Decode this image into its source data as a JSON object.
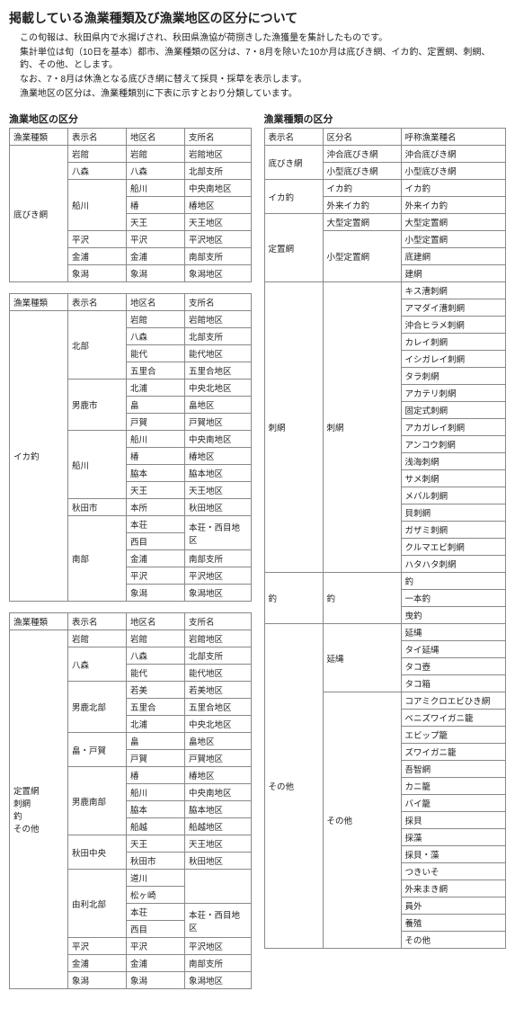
{
  "title": "掲載している漁業種類及び漁業地区の区分について",
  "intro": [
    "この旬報は、秋田県内で水揚げされ、秋田県漁協が荷捌きした漁獲量を集計したものです。",
    "集計単位は旬（10日を基本）都市、漁業種類の区分は、7・8月を除いた10か月は底びき網、イカ釣、定置網、刺網、釣、その他、とします。",
    "なお、7・8月は休漁となる底びき網に替えて採貝・採草を表示します。",
    "漁業地区の区分は、漁業種類別に下表に示すとおり分類しています。"
  ],
  "left_title": "漁業地区の区分",
  "right_title": "漁業種類の区分",
  "left_headers": [
    "漁業種類",
    "表示名",
    "地区名",
    "支所名"
  ],
  "right_headers": [
    "表示名",
    "区分名",
    "呼称漁業種名"
  ],
  "left_tables": [
    {
      "cat": "底びき網",
      "blocks": [
        {
          "disp": "岩館",
          "rows": [
            [
              "岩館",
              "岩館地区"
            ]
          ]
        },
        {
          "disp": "八森",
          "rows": [
            [
              "八森",
              "北部支所"
            ]
          ]
        },
        {
          "disp": "船川",
          "rows": [
            [
              "船川",
              "中央南地区"
            ],
            [
              "椿",
              "椿地区"
            ],
            [
              "天王",
              "天王地区"
            ]
          ]
        },
        {
          "disp": "平沢",
          "rows": [
            [
              "平沢",
              "平沢地区"
            ]
          ]
        },
        {
          "disp": "金浦",
          "rows": [
            [
              "金浦",
              "南部支所"
            ]
          ]
        },
        {
          "disp": "象潟",
          "rows": [
            [
              "象潟",
              "象潟地区"
            ]
          ]
        }
      ]
    },
    {
      "cat": "イカ釣",
      "blocks": [
        {
          "disp": "北部",
          "rows": [
            [
              "岩館",
              "岩館地区"
            ],
            [
              "八森",
              "北部支所"
            ],
            [
              "能代",
              "能代地区"
            ],
            [
              "五里合",
              "五里合地区"
            ]
          ]
        },
        {
          "disp": "男鹿市",
          "rows": [
            [
              "北浦",
              "中央北地区"
            ],
            [
              "畠",
              "畠地区"
            ],
            [
              "戸賀",
              "戸賀地区"
            ]
          ]
        },
        {
          "disp": "船川",
          "rows": [
            [
              "船川",
              "中央南地区"
            ],
            [
              "椿",
              "椿地区"
            ],
            [
              "脇本",
              "脇本地区"
            ],
            [
              "天王",
              "天王地区"
            ]
          ]
        },
        {
          "disp": "秋田市",
          "rows": [
            [
              "本所",
              "秋田地区"
            ]
          ]
        },
        {
          "disp": "南部",
          "rows": [
            [
              "本荘",
              ""
            ],
            [
              "西目",
              "本荘・西目地区"
            ],
            [
              "金浦",
              "南部支所"
            ],
            [
              "平沢",
              "平沢地区"
            ],
            [
              "象潟",
              "象潟地区"
            ]
          ]
        }
      ],
      "merge_nanbu": true
    },
    {
      "cat": "定置網\n刺網\n釣\nその他",
      "blocks": [
        {
          "disp": "岩館",
          "rows": [
            [
              "岩館",
              "岩館地区"
            ]
          ]
        },
        {
          "disp": "八森",
          "rows": [
            [
              "八森",
              "北部支所"
            ],
            [
              "能代",
              "能代地区"
            ]
          ]
        },
        {
          "disp": "男鹿北部",
          "rows": [
            [
              "若美",
              "若美地区"
            ],
            [
              "五里合",
              "五里合地区"
            ],
            [
              "北浦",
              "中央北地区"
            ]
          ]
        },
        {
          "disp": "畠・戸賀",
          "rows": [
            [
              "畠",
              "畠地区"
            ],
            [
              "戸賀",
              "戸賀地区"
            ]
          ]
        },
        {
          "disp": "男鹿南部",
          "rows": [
            [
              "椿",
              "椿地区"
            ],
            [
              "船川",
              "中央南地区"
            ],
            [
              "脇本",
              "脇本地区"
            ],
            [
              "船越",
              "船越地区"
            ]
          ]
        },
        {
          "disp": "秋田中央",
          "rows": [
            [
              "天王",
              "天王地区"
            ],
            [
              "秋田市",
              "秋田地区"
            ]
          ]
        },
        {
          "disp": "由利北部",
          "rows": [
            [
              "道川",
              ""
            ],
            [
              "松ヶ崎",
              ""
            ],
            [
              "本荘",
              ""
            ],
            [
              "西目",
              "本荘・西目地区"
            ]
          ]
        },
        {
          "disp": "平沢",
          "rows": [
            [
              "平沢",
              "平沢地区"
            ]
          ]
        },
        {
          "disp": "金浦",
          "rows": [
            [
              "金浦",
              "南部支所"
            ]
          ]
        },
        {
          "disp": "象潟",
          "rows": [
            [
              "象潟",
              "象潟地区"
            ]
          ]
        }
      ],
      "merge_yuri": true
    }
  ],
  "right_table": [
    {
      "disp": "底びき網",
      "blocks": [
        {
          "sub": "沖合底びき網",
          "rows": [
            "沖合底びき網"
          ]
        },
        {
          "sub": "小型底びき網",
          "rows": [
            "小型底びき網"
          ]
        }
      ]
    },
    {
      "disp": "イカ釣",
      "blocks": [
        {
          "sub": "イカ釣",
          "rows": [
            "イカ釣"
          ]
        },
        {
          "sub": "外来イカ釣",
          "rows": [
            "外来イカ釣"
          ]
        }
      ]
    },
    {
      "disp": "定置網",
      "blocks": [
        {
          "sub": "大型定置網",
          "rows": [
            "大型定置網"
          ]
        },
        {
          "sub": "小型定置網",
          "rows": [
            "小型定置網",
            "底建網",
            "建網"
          ]
        }
      ]
    },
    {
      "disp": "刺網",
      "blocks": [
        {
          "sub": "刺網",
          "rows": [
            "キス漕刺網",
            "アマダイ漕刺網",
            "沖合ヒラメ刺網",
            "カレイ刺網",
            "イシガレイ刺網",
            "タラ刺網",
            "アカテリ刺網",
            "固定式刺網",
            "アカガレイ刺網",
            "アンコウ刺網",
            "浅海刺網",
            "サメ刺網",
            "メバル刺網",
            "貝刺網",
            "ガザミ刺網",
            "クルマエビ刺網",
            "ハタハタ刺網"
          ]
        }
      ]
    },
    {
      "disp": "釣",
      "blocks": [
        {
          "sub": "釣",
          "rows": [
            "釣",
            "一本釣",
            "曳釣"
          ]
        }
      ]
    },
    {
      "disp": "その他",
      "blocks": [
        {
          "sub": "延縄",
          "rows": [
            "延縄",
            "タイ延縄",
            "タコ壺",
            "タコ箱"
          ]
        },
        {
          "sub": "その他",
          "rows": [
            "コアミクロエビひき網",
            "ベニズワイガニ籠",
            "エビップ籠",
            "ズワイガニ籠",
            "吾智網",
            "カニ籠",
            "バイ籠",
            "採貝",
            "採藻",
            "採貝・藻",
            "つきいそ",
            "外来まき網",
            "員外",
            "養殖",
            "その他"
          ]
        }
      ]
    }
  ]
}
